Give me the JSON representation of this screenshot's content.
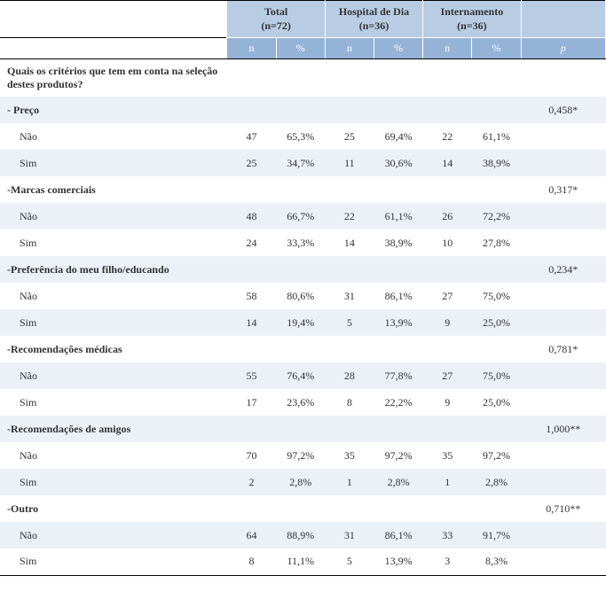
{
  "headers": {
    "total": {
      "label": "Total",
      "sub": "(n=72)"
    },
    "hosp": {
      "label": "Hospital de Dia",
      "sub": "(n=36)"
    },
    "int": {
      "label": "Internamento",
      "sub": "(n=36)"
    },
    "n": "n",
    "pct": "%",
    "p": "p"
  },
  "question": "Quais os critérios que tem em conta na seleção destes produtos?",
  "criteria": [
    {
      "label": "- Preço",
      "p": "0,458*",
      "no": {
        "label": "Não",
        "t_n": "47",
        "t_pct": "65,3%",
        "h_n": "25",
        "h_pct": "69,4%",
        "i_n": "22",
        "i_pct": "61,1%"
      },
      "yes": {
        "label": "Sim",
        "t_n": "25",
        "t_pct": "34,7%",
        "h_n": "11",
        "h_pct": "30,6%",
        "i_n": "14",
        "i_pct": "38,9%"
      }
    },
    {
      "label": "-Marcas comerciais",
      "p": "0,317*",
      "no": {
        "label": "Não",
        "t_n": "48",
        "t_pct": "66,7%",
        "h_n": "22",
        "h_pct": "61,1%",
        "i_n": "26",
        "i_pct": "72,2%"
      },
      "yes": {
        "label": "Sim",
        "t_n": "24",
        "t_pct": "33,3%",
        "h_n": "14",
        "h_pct": "38,9%",
        "i_n": "10",
        "i_pct": "27,8%"
      }
    },
    {
      "label": "-Preferência do meu filho/educando",
      "p": "0,234*",
      "no": {
        "label": "Não",
        "t_n": "58",
        "t_pct": "80,6%",
        "h_n": "31",
        "h_pct": "86,1%",
        "i_n": "27",
        "i_pct": "75,0%"
      },
      "yes": {
        "label": "Sim",
        "t_n": "14",
        "t_pct": "19,4%",
        "h_n": "5",
        "h_pct": "13,9%",
        "i_n": "9",
        "i_pct": "25,0%"
      }
    },
    {
      "label": "-Recomendações médicas",
      "p": "0,781*",
      "no": {
        "label": "Não",
        "t_n": "55",
        "t_pct": "76,4%",
        "h_n": "28",
        "h_pct": "77,8%",
        "i_n": "27",
        "i_pct": "75,0%"
      },
      "yes": {
        "label": "Sim",
        "t_n": "17",
        "t_pct": "23,6%",
        "h_n": "8",
        "h_pct": "22,2%",
        "i_n": "9",
        "i_pct": "25,0%"
      }
    },
    {
      "label": "-Recomendações de amigos",
      "p": "1,000**",
      "no": {
        "label": "Não",
        "t_n": "70",
        "t_pct": "97,2%",
        "h_n": "35",
        "h_pct": "97,2%",
        "i_n": "35",
        "i_pct": "97,2%"
      },
      "yes": {
        "label": "Sim",
        "t_n": "2",
        "t_pct": "2,8%",
        "h_n": "1",
        "h_pct": "2,8%",
        "i_n": "1",
        "i_pct": "2,8%"
      }
    },
    {
      "label": "-Outro",
      "p": "0,710**",
      "no": {
        "label": "Não",
        "t_n": "64",
        "t_pct": "88,9%",
        "h_n": "31",
        "h_pct": "86,1%",
        "i_n": "33",
        "i_pct": "91,7%"
      },
      "yes": {
        "label": "Sim",
        "t_n": "8",
        "t_pct": "11,1%",
        "h_n": "5",
        "h_pct": "13,9%",
        "i_n": "3",
        "i_pct": "8,3%"
      }
    }
  ]
}
